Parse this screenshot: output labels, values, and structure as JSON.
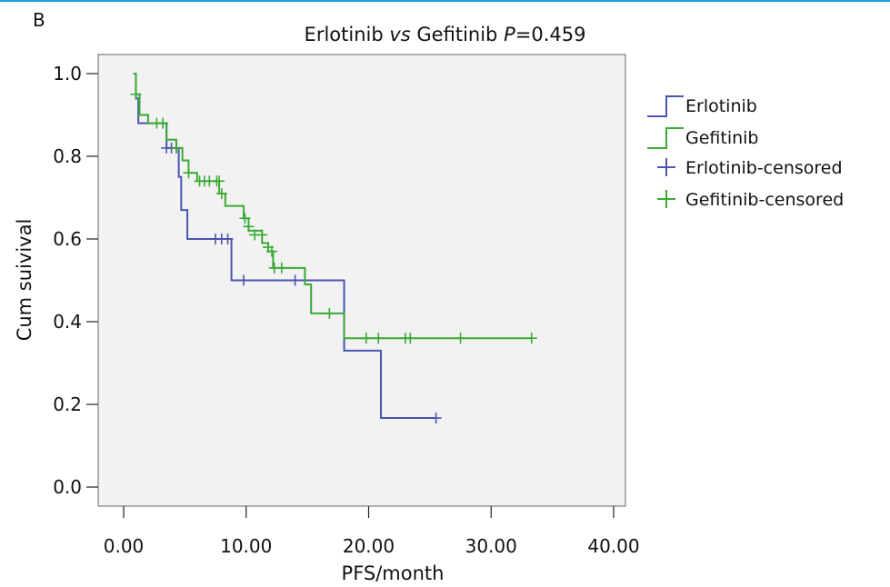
{
  "panel_label": "B",
  "title_parts": {
    "a": "Erlotinib ",
    "b": "vs",
    "c": " Gefitinib  ",
    "d": "P",
    "e": "=0.459"
  },
  "chart_data": {
    "type": "line",
    "subtype": "kaplan-meier",
    "title": "Erlotinib vs Gefitinib  P=0.459",
    "xlabel": "PFS/month",
    "ylabel": "Cum suivival",
    "xlim": [
      0,
      40
    ],
    "ylim": [
      0,
      1.0
    ],
    "x_ticks": [
      0,
      10,
      20,
      30,
      40
    ],
    "x_tick_labels": [
      "0.00",
      "10.00",
      "20.00",
      "30.00",
      "40.00"
    ],
    "y_ticks": [
      0,
      0.2,
      0.4,
      0.6,
      0.8,
      1.0
    ],
    "y_tick_labels": [
      "0.0",
      "0.2",
      "0.4",
      "0.6",
      "0.8",
      "1.0"
    ],
    "grid": false,
    "legend_position": "right",
    "series": [
      {
        "name": "Erlotinib",
        "color": "#4b55b0",
        "steps": [
          [
            0.8,
            1.0
          ],
          [
            1.0,
            0.94
          ],
          [
            1.2,
            0.88
          ],
          [
            3.5,
            0.82
          ],
          [
            4.5,
            0.75
          ],
          [
            4.7,
            0.67
          ],
          [
            5.2,
            0.6
          ],
          [
            8.8,
            0.5
          ],
          [
            18.0,
            0.33
          ],
          [
            21.0,
            0.167
          ],
          [
            25.5,
            0.167
          ]
        ],
        "censored": [
          [
            3.5,
            0.82
          ],
          [
            3.9,
            0.82
          ],
          [
            4.3,
            0.82
          ],
          [
            7.5,
            0.6
          ],
          [
            8.0,
            0.6
          ],
          [
            8.5,
            0.6
          ],
          [
            9.8,
            0.5
          ],
          [
            14.0,
            0.5
          ],
          [
            25.5,
            0.167
          ]
        ]
      },
      {
        "name": "Gefitinib",
        "color": "#3aaa35",
        "steps": [
          [
            0.8,
            1.0
          ],
          [
            1.0,
            0.95
          ],
          [
            1.3,
            0.9
          ],
          [
            2.0,
            0.88
          ],
          [
            3.5,
            0.84
          ],
          [
            4.3,
            0.82
          ],
          [
            4.8,
            0.79
          ],
          [
            5.3,
            0.76
          ],
          [
            6.0,
            0.74
          ],
          [
            7.8,
            0.71
          ],
          [
            8.3,
            0.68
          ],
          [
            9.8,
            0.65
          ],
          [
            10.2,
            0.62
          ],
          [
            11.3,
            0.59
          ],
          [
            11.8,
            0.57
          ],
          [
            12.2,
            0.53
          ],
          [
            14.8,
            0.49
          ],
          [
            15.3,
            0.42
          ],
          [
            18.0,
            0.36
          ],
          [
            33.3,
            0.36
          ]
        ],
        "censored": [
          [
            1.0,
            0.95
          ],
          [
            2.7,
            0.88
          ],
          [
            3.2,
            0.88
          ],
          [
            4.3,
            0.82
          ],
          [
            5.3,
            0.76
          ],
          [
            6.2,
            0.74
          ],
          [
            6.6,
            0.74
          ],
          [
            7.0,
            0.74
          ],
          [
            7.6,
            0.74
          ],
          [
            7.8,
            0.74
          ],
          [
            8.0,
            0.71
          ],
          [
            9.9,
            0.65
          ],
          [
            10.2,
            0.63
          ],
          [
            10.7,
            0.61
          ],
          [
            11.3,
            0.61
          ],
          [
            11.8,
            0.58
          ],
          [
            12.1,
            0.57
          ],
          [
            12.3,
            0.53
          ],
          [
            12.9,
            0.53
          ],
          [
            16.8,
            0.42
          ],
          [
            19.8,
            0.36
          ],
          [
            20.8,
            0.36
          ],
          [
            23.0,
            0.36
          ],
          [
            23.4,
            0.36
          ],
          [
            27.5,
            0.36
          ],
          [
            33.3,
            0.36
          ]
        ]
      }
    ],
    "legend_entries": [
      "Erlotinib",
      "Gefitinib",
      "Erlotinib-censored",
      "Gefitinib-censored"
    ]
  },
  "colors": {
    "plot_background": "#f2f2f2",
    "frame": "#666666",
    "erlotinib": "#4b55b0",
    "gefitinib": "#3aaa35",
    "accent_rule": "#1aa3d6"
  }
}
